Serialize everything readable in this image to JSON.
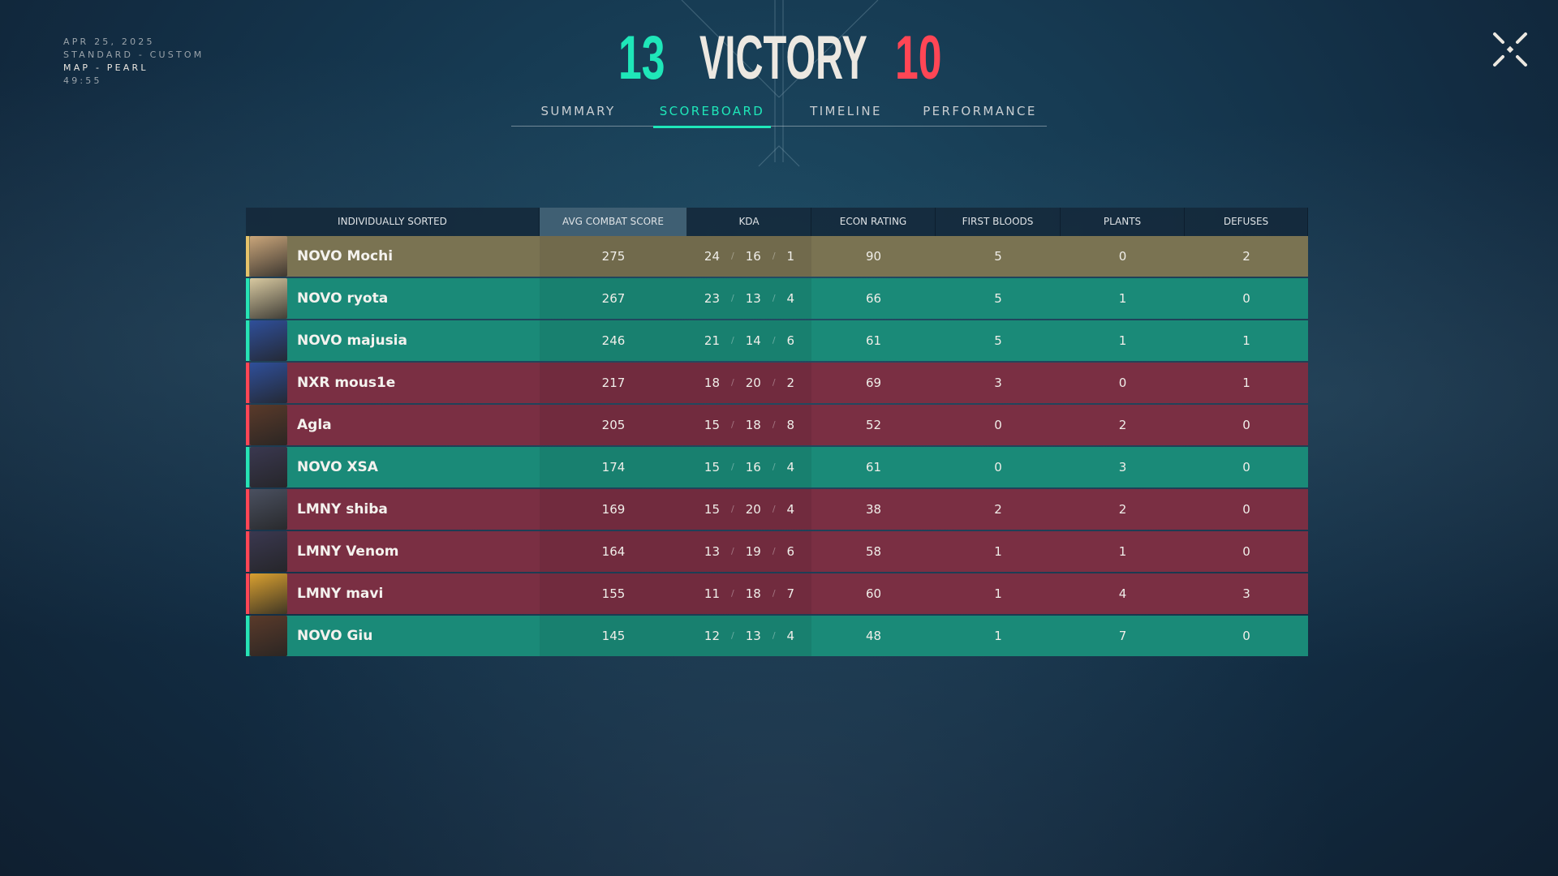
{
  "match": {
    "date": "APR 25, 2025",
    "mode": "STANDARD - CUSTOM",
    "map": "MAP - PEARL",
    "duration": "49:55"
  },
  "header": {
    "team_score": "13",
    "result": "VICTORY",
    "enemy_score": "10"
  },
  "tabs": [
    {
      "label": "SUMMARY"
    },
    {
      "label": "SCOREBOARD",
      "active": true
    },
    {
      "label": "TIMELINE"
    },
    {
      "label": "PERFORMANCE"
    }
  ],
  "colors": {
    "ally": "#1a8a78",
    "enemy": "#7a2f43",
    "self": "#7a7352",
    "accent": "#1fe7b9",
    "red": "#ff4655"
  },
  "columns": [
    "INDIVIDUALLY SORTED",
    "AVG COMBAT SCORE",
    "KDA",
    "ECON RATING",
    "FIRST BLOODS",
    "PLANTS",
    "DEFUSES"
  ],
  "players": [
    {
      "name": "NOVO Mochi",
      "team": "me",
      "acs": "275",
      "k": "24",
      "d": "16",
      "a": "1",
      "econ": "90",
      "fb": "5",
      "plants": "0",
      "defuses": "2",
      "av": "#c9a57a"
    },
    {
      "name": "NOVO ryota",
      "team": "ally",
      "acs": "267",
      "k": "23",
      "d": "13",
      "a": "4",
      "econ": "66",
      "fb": "5",
      "plants": "1",
      "defuses": "0",
      "av": "#d8c9a0"
    },
    {
      "name": "NOVO majusia",
      "team": "ally",
      "acs": "246",
      "k": "21",
      "d": "14",
      "a": "6",
      "econ": "61",
      "fb": "5",
      "plants": "1",
      "defuses": "1",
      "av": "#2f4f9a"
    },
    {
      "name": "NXR mous1e",
      "team": "enemy",
      "acs": "217",
      "k": "18",
      "d": "20",
      "a": "2",
      "econ": "69",
      "fb": "3",
      "plants": "0",
      "defuses": "1",
      "av": "#2f4f9a"
    },
    {
      "name": "Agla",
      "team": "enemy",
      "acs": "205",
      "k": "15",
      "d": "18",
      "a": "8",
      "econ": "52",
      "fb": "0",
      "plants": "2",
      "defuses": "0",
      "av": "#5a3a2a"
    },
    {
      "name": "NOVO XSA",
      "team": "ally",
      "acs": "174",
      "k": "15",
      "d": "16",
      "a": "4",
      "econ": "61",
      "fb": "0",
      "plants": "3",
      "defuses": "0",
      "av": "#3a3850"
    },
    {
      "name": "LMNY shiba",
      "team": "enemy",
      "acs": "169",
      "k": "15",
      "d": "20",
      "a": "4",
      "econ": "38",
      "fb": "2",
      "plants": "2",
      "defuses": "0",
      "av": "#4a5060"
    },
    {
      "name": "LMNY Venom",
      "team": "enemy",
      "acs": "164",
      "k": "13",
      "d": "19",
      "a": "6",
      "econ": "58",
      "fb": "1",
      "plants": "1",
      "defuses": "0",
      "av": "#3a3850"
    },
    {
      "name": "LMNY mavi",
      "team": "enemy",
      "acs": "155",
      "k": "11",
      "d": "18",
      "a": "7",
      "econ": "60",
      "fb": "1",
      "plants": "4",
      "defuses": "3",
      "av": "#d9a030"
    },
    {
      "name": "NOVO Giu",
      "team": "ally",
      "acs": "145",
      "k": "12",
      "d": "13",
      "a": "4",
      "econ": "48",
      "fb": "1",
      "plants": "7",
      "defuses": "0",
      "av": "#5a3a2a"
    }
  ]
}
